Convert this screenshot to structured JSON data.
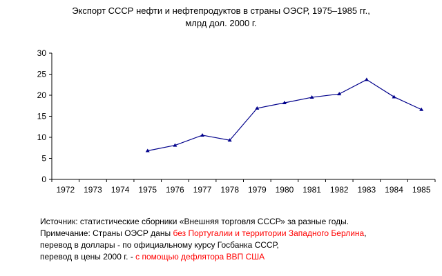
{
  "chart_data": {
    "type": "line",
    "title": "Экспорт СССР нефти и нефтепродуктов в страны ОЭСР, 1975–1985 гг.,",
    "subtitle": "млрд дол. 2000 г.",
    "categories": [
      "1972",
      "1973",
      "1974",
      "1975",
      "1976",
      "1977",
      "1978",
      "1979",
      "1980",
      "1981",
      "1982",
      "1983",
      "1984",
      "1985"
    ],
    "series": [
      {
        "values": [
          null,
          null,
          null,
          6.8,
          8.1,
          10.5,
          9.3,
          16.9,
          18.2,
          19.5,
          20.3,
          23.7,
          19.6,
          16.6
        ],
        "color": "#00008b"
      }
    ],
    "ylim": [
      0,
      30
    ],
    "yticks": [
      "0",
      "5",
      "10",
      "15",
      "20",
      "25",
      "30"
    ],
    "xlabel": "",
    "ylabel": "",
    "grid": false,
    "legend": "none"
  },
  "notes": {
    "source": "Источник: статистические сборники «Внешняя торговля СССР» за разные годы.",
    "note_prefix": "Примечание: Страны ОЭСР даны ",
    "note_red": "без Португалии и территории Западного Берлина",
    "note_suffix": ",",
    "conversion": "перевод в доллары  - по официальному курсу Госбанка СССР,",
    "prices_prefix": "перевод в цены 2000 г. - ",
    "prices_red": "с помощью дефлятора ВВП США"
  },
  "colors": {
    "note_highlight": "#ff0000",
    "series": "#00008b"
  }
}
